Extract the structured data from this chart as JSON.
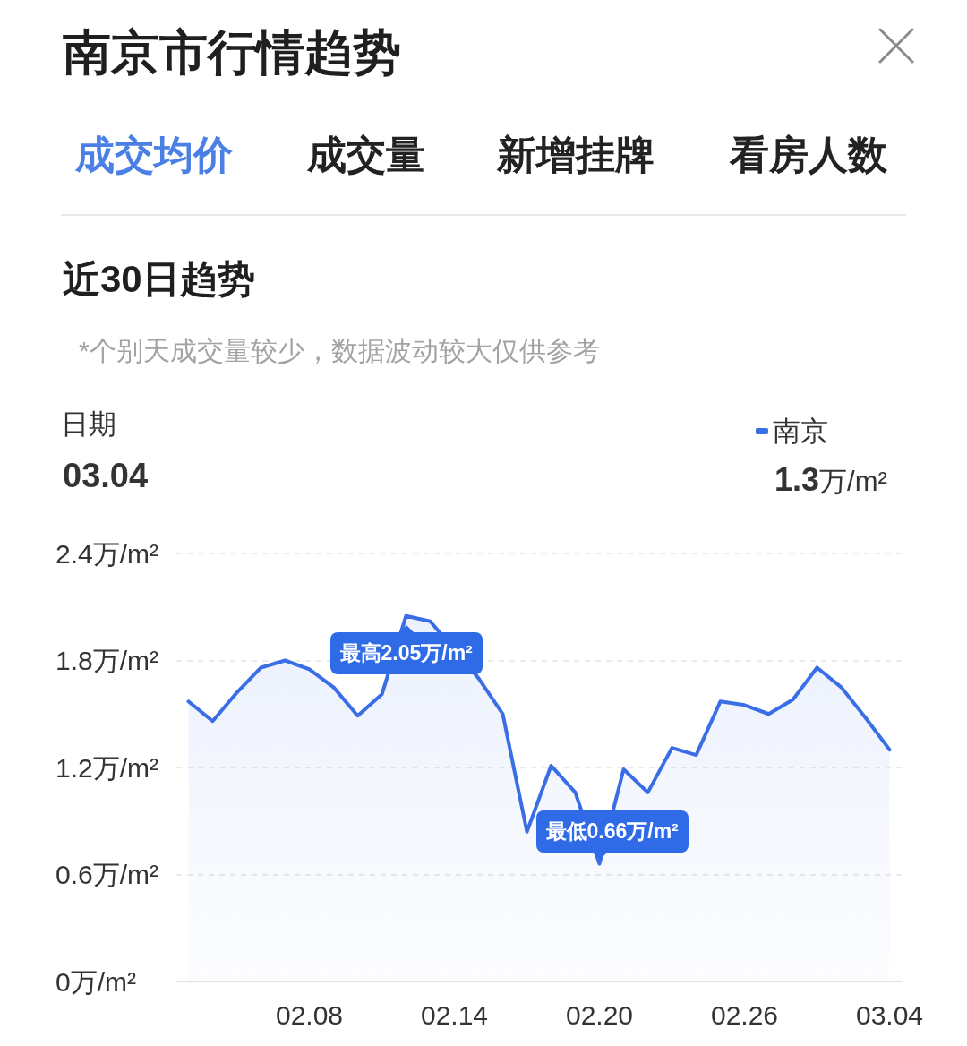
{
  "chart_data": {
    "type": "area",
    "title": "南京市行情趋势",
    "subtitle": "近30日趋势",
    "categories": [
      null,
      null,
      null,
      null,
      null,
      "02.08",
      null,
      null,
      null,
      null,
      null,
      "02.14",
      null,
      null,
      null,
      null,
      null,
      "02.20",
      null,
      null,
      null,
      null,
      null,
      "02.26",
      null,
      null,
      null,
      null,
      null,
      "03.04"
    ],
    "series": [
      {
        "name": "南京",
        "color": "#3a6ee6",
        "values": [
          1.57,
          1.46,
          1.62,
          1.76,
          1.8,
          1.75,
          1.65,
          1.49,
          1.61,
          2.05,
          2.02,
          null,
          1.7,
          1.5,
          0.84,
          1.21,
          1.06,
          0.66,
          1.19,
          1.06,
          1.31,
          1.27,
          1.57,
          1.55,
          1.5,
          1.58,
          1.76,
          1.65,
          1.48,
          1.3
        ]
      }
    ],
    "ylim": [
      0,
      2.4
    ],
    "yticks": [
      {
        "value": 0,
        "label": "0万/m²"
      },
      {
        "value": 0.6,
        "label": "0.6万/m²"
      },
      {
        "value": 1.2,
        "label": "1.2万/m²"
      },
      {
        "value": 1.8,
        "label": "1.8万/m²"
      },
      {
        "value": 2.4,
        "label": "2.4万/m²"
      }
    ],
    "grid": "y",
    "legend": "top right",
    "marker": "none",
    "line_style": "solid",
    "annotations": [
      "成交均价",
      "成交量",
      "新增挂牌",
      "看房人数",
      "*个别天成交量较少，数据波动较大仅供参考",
      "日期",
      "03.04",
      "1.3万/m²",
      {
        "text": "最高2.05万/m²",
        "y": 2.05
      },
      {
        "text": "最低0.66万/m²",
        "x": "02.20",
        "y": 0.66
      }
    ]
  }
}
